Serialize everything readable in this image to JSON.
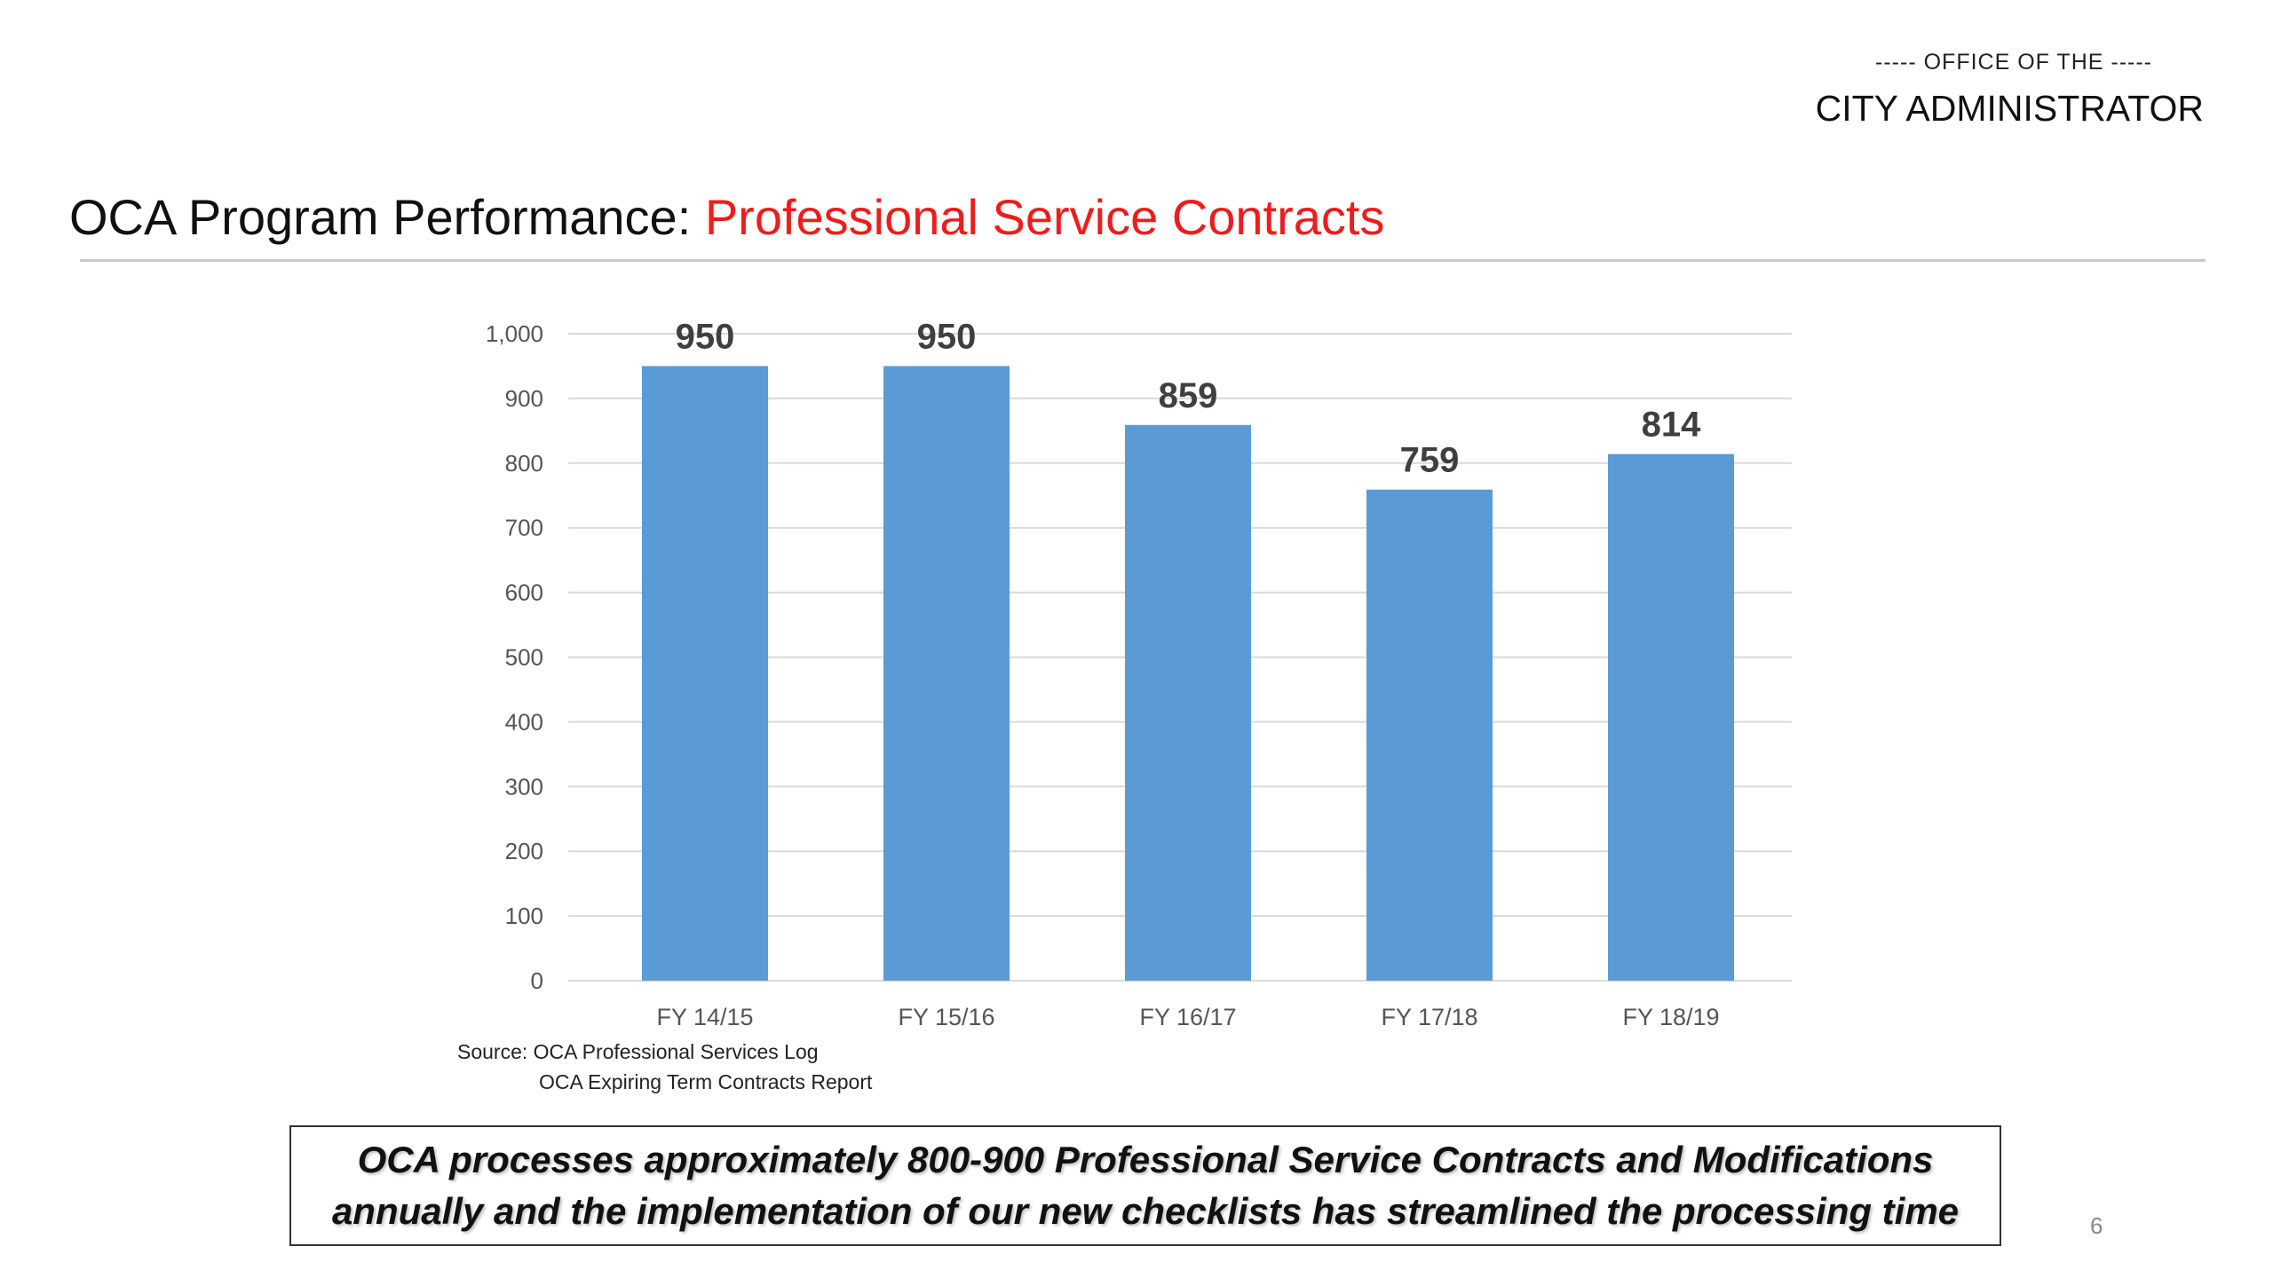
{
  "header": {
    "line1": "----- OFFICE OF THE -----",
    "line2": "CITY ADMINISTRATOR"
  },
  "title": {
    "prefix": "OCA Program Performance: ",
    "highlight": "Professional Service Contracts"
  },
  "colors": {
    "bar": "#5b9bd5",
    "accent": "#ee1c1c",
    "gridline": "#d9d9d9"
  },
  "chart_data": {
    "type": "bar",
    "categories": [
      "FY 14/15",
      "FY 15/16",
      "FY 16/17",
      "FY 17/18",
      "FY 18/19"
    ],
    "values": [
      950,
      950,
      859,
      759,
      814
    ],
    "data_labels": [
      "950",
      "950",
      "859",
      "759",
      "814"
    ],
    "ylim": [
      0,
      1000
    ],
    "y_ticks": [
      0,
      100,
      200,
      300,
      400,
      500,
      600,
      700,
      800,
      900,
      1000
    ],
    "y_tick_labels": [
      "0",
      "100",
      "200",
      "300",
      "400",
      "500",
      "600",
      "700",
      "800",
      "900",
      "1,000"
    ],
    "grid": true,
    "legend": "none"
  },
  "source": {
    "line1": "Source: OCA Professional Services Log",
    "line2": "OCA Expiring Term Contracts Report"
  },
  "callout": {
    "line1": "OCA processes approximately 800-900 Professional Service Contracts and Modifications",
    "line2": "annually and the implementation of our new checklists has streamlined the processing time"
  },
  "page_number": "6"
}
